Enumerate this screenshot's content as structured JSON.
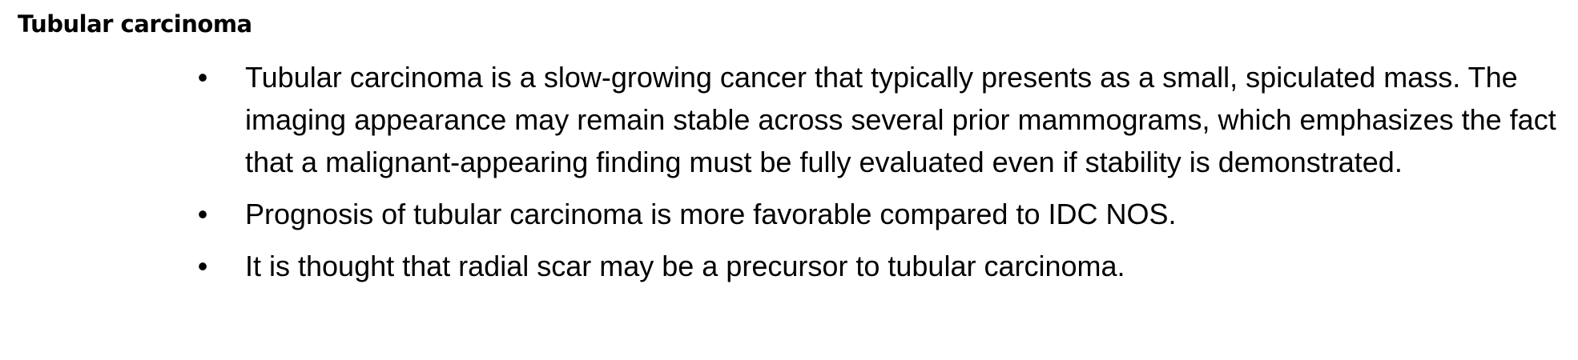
{
  "section": {
    "heading": "Tubular carcinoma",
    "bullet_symbol": "•",
    "bullets": [
      {
        "text": "Tubular carcinoma is a slow-growing cancer that typically presents as a small, spiculated mass. The imaging appearance may remain stable across several prior mammograms, which emphasizes the fact that a malignant-appearing finding must be fully evaluated even if stability is demonstrated."
      },
      {
        "text": "Prognosis of tubular carcinoma is more favorable compared to IDC NOS."
      },
      {
        "text": "It is thought that radial scar may be a precursor to tubular carcinoma."
      }
    ]
  }
}
